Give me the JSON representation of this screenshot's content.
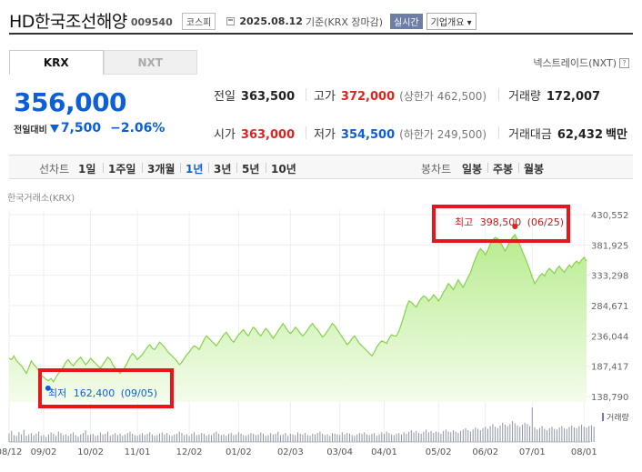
{
  "header": {
    "stock_name": "HD한국조선해양",
    "stock_code": "009540",
    "market": "코스피",
    "date_text": "2025.08.12",
    "date_suffix": "기준(KRX 장마감)",
    "realtime": "실시간",
    "company_info": "기업개요 ▾"
  },
  "tabs": [
    {
      "label": "KRX",
      "active": true
    },
    {
      "label": "NXT",
      "active": false
    }
  ],
  "nxt_link": "넥스트레이드(NXT)",
  "price": {
    "current": "356,000",
    "change_label": "전일대비",
    "change": "7,500",
    "rate": "−2.06%"
  },
  "stats": {
    "prev_close_label": "전일",
    "prev_close": "363,500",
    "high_label": "고가",
    "high": "372,000",
    "upper_limit": "(상한가 462,500)",
    "volume_label": "거래량",
    "volume": "172,007",
    "open_label": "시가",
    "open": "363,000",
    "low_label": "저가",
    "low": "354,500",
    "lower_limit": "(하한가 249,500)",
    "trade_value_label": "거래대금",
    "trade_value": "62,432",
    "trade_value_unit": "백만"
  },
  "period_bar": {
    "line_label": "선차트",
    "line_periods": [
      "1일",
      "1주일",
      "3개월",
      "1년",
      "3년",
      "5년",
      "10년"
    ],
    "active_period": "1년",
    "candle_label": "봉차트",
    "candle_periods": [
      "일봉",
      "주봉",
      "월봉"
    ]
  },
  "exchange_label": "한국거래소(KRX)",
  "colors": {
    "up": "#e0231f",
    "down": "#0c5fd6",
    "area_line": "#86d24a",
    "highlight_box": "#e8151b"
  },
  "chart_data": {
    "type": "area",
    "ylim": [
      138790,
      430552
    ],
    "y_ticks": [
      430552,
      381925,
      333298,
      284671,
      236044,
      187417,
      138790
    ],
    "y_tick_labels": [
      "430,552",
      "381,925",
      "333,298",
      "284,671",
      "236,044",
      "187,417",
      "138,790"
    ],
    "x_tick_labels": [
      "08/12",
      "09/02",
      "10/02",
      "11/01",
      "12/02",
      "01/02",
      "02/03",
      "03/04",
      "04/01",
      "05/02",
      "06/02",
      "07/01",
      "08/01"
    ],
    "x_tick_index": [
      0,
      14,
      33,
      52,
      73,
      93,
      114,
      134,
      152,
      174,
      193,
      212,
      233
    ],
    "values": [
      200000,
      198000,
      204000,
      196000,
      192000,
      188000,
      182000,
      176000,
      185000,
      196000,
      190000,
      186000,
      180000,
      172000,
      170000,
      166000,
      164000,
      168000,
      162400,
      170000,
      176000,
      180000,
      186000,
      194000,
      198000,
      192000,
      188000,
      194000,
      198000,
      202000,
      196000,
      190000,
      194000,
      200000,
      196000,
      192000,
      188000,
      184000,
      190000,
      196000,
      202000,
      198000,
      190000,
      184000,
      180000,
      176000,
      180000,
      186000,
      194000,
      202000,
      208000,
      204000,
      198000,
      202000,
      206000,
      212000,
      218000,
      222000,
      216000,
      214000,
      220000,
      226000,
      222000,
      218000,
      212000,
      208000,
      204000,
      200000,
      196000,
      190000,
      194000,
      200000,
      206000,
      210000,
      216000,
      220000,
      218000,
      214000,
      222000,
      230000,
      236000,
      232000,
      228000,
      224000,
      220000,
      226000,
      232000,
      238000,
      242000,
      236000,
      230000,
      226000,
      232000,
      238000,
      242000,
      246000,
      240000,
      236000,
      244000,
      250000,
      246000,
      240000,
      236000,
      242000,
      248000,
      244000,
      238000,
      232000,
      238000,
      244000,
      250000,
      256000,
      250000,
      244000,
      240000,
      244000,
      250000,
      246000,
      240000,
      236000,
      240000,
      246000,
      252000,
      256000,
      250000,
      246000,
      240000,
      234000,
      238000,
      244000,
      250000,
      256000,
      252000,
      246000,
      240000,
      234000,
      228000,
      222000,
      226000,
      232000,
      236000,
      230000,
      224000,
      220000,
      216000,
      212000,
      208000,
      204000,
      210000,
      218000,
      224000,
      228000,
      226000,
      224000,
      232000,
      238000,
      236000,
      236000,
      244000,
      256000,
      268000,
      282000,
      292000,
      290000,
      286000,
      282000,
      290000,
      296000,
      300000,
      298000,
      292000,
      296000,
      302000,
      298000,
      292000,
      298000,
      306000,
      312000,
      320000,
      316000,
      310000,
      318000,
      326000,
      320000,
      314000,
      322000,
      330000,
      338000,
      350000,
      360000,
      370000,
      376000,
      372000,
      366000,
      374000,
      384000,
      390000,
      394000,
      392000,
      386000,
      380000,
      372000,
      380000,
      388000,
      394000,
      398500,
      390000,
      382000,
      372000,
      362000,
      352000,
      342000,
      330000,
      320000,
      326000,
      332000,
      336000,
      332000,
      340000,
      344000,
      340000,
      336000,
      344000,
      348000,
      342000,
      338000,
      344000,
      350000,
      346000,
      352000,
      356000,
      352000,
      358000,
      362000,
      356000
    ],
    "volume_values": [
      25,
      32,
      20,
      18,
      28,
      22,
      35,
      18,
      22,
      26,
      20,
      24,
      30,
      18,
      20,
      15,
      22,
      28,
      24,
      18,
      30,
      26,
      20,
      22,
      18,
      24,
      28,
      20,
      16,
      22,
      26,
      34,
      20,
      22,
      24,
      18,
      20,
      28,
      22,
      24,
      30,
      18,
      22,
      26,
      20,
      24,
      18,
      22,
      26,
      30,
      24,
      20,
      18,
      22,
      26,
      20,
      24,
      28,
      22,
      18,
      20,
      24,
      28,
      22,
      26,
      20,
      18,
      22,
      24,
      30,
      26,
      20,
      22,
      18,
      24,
      28,
      20,
      22,
      26,
      24,
      18,
      22,
      20,
      26,
      30,
      24,
      20,
      22,
      18,
      24,
      26,
      20,
      22,
      28,
      24,
      20,
      18,
      22,
      26,
      24,
      20,
      22,
      28,
      24,
      18,
      20,
      26,
      22,
      24,
      30,
      20,
      22,
      26,
      18,
      24,
      22,
      20,
      28,
      24,
      22,
      26,
      20,
      18,
      24,
      22,
      26,
      30,
      24,
      20,
      22,
      18,
      26,
      24,
      22,
      20,
      28,
      22,
      26,
      24,
      20,
      18,
      22,
      26,
      24,
      28,
      22,
      20,
      24,
      26,
      18,
      22,
      28,
      24,
      30,
      26,
      22,
      20,
      24,
      26,
      22,
      28,
      24,
      30,
      34,
      28,
      32,
      26,
      24,
      30,
      36,
      28,
      32,
      26,
      30,
      28,
      24,
      32,
      36,
      30,
      28,
      34,
      30,
      26,
      32,
      36,
      40,
      34,
      30,
      36,
      42,
      38,
      34,
      40,
      44,
      38,
      46,
      52,
      44,
      40,
      48,
      56,
      50,
      46,
      52,
      60,
      54,
      48,
      44,
      50,
      56,
      52,
      46,
      100,
      42,
      36,
      40,
      46,
      38,
      34,
      40,
      44,
      38,
      36,
      42,
      46,
      40,
      38,
      44,
      48,
      42,
      40,
      46,
      50,
      44,
      42,
      46,
      48,
      44
    ],
    "volume_label": "거래량",
    "max_annotation": {
      "label": "최고",
      "value": "398,500",
      "date": "(06/25)"
    },
    "min_annotation": {
      "label": "최저",
      "value": "162,400",
      "date": "(09/05)"
    }
  }
}
